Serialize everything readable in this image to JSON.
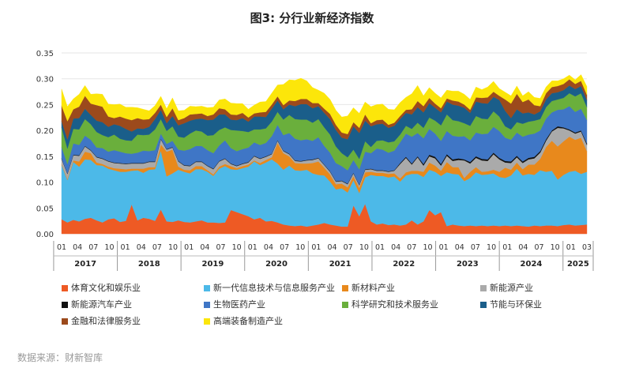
{
  "title": "图3: 分行业新经济指数",
  "source_note": "数据来源：财新智库",
  "chart_data": {
    "type": "area",
    "stacked": true,
    "title": "图3: 分行业新经济指数",
    "ylim": [
      0,
      0.35
    ],
    "y_ticks": [
      "0.00",
      "0.05",
      "0.10",
      "0.15",
      "0.20",
      "0.25",
      "0.30",
      "0.35"
    ],
    "month_ticks": [
      "01",
      "04",
      "07",
      "10",
      "01",
      "04",
      "07",
      "10",
      "01",
      "04",
      "07",
      "10",
      "01",
      "04",
      "07",
      "10",
      "01",
      "04",
      "07",
      "10",
      "01",
      "04",
      "07",
      "10",
      "01",
      "04",
      "07",
      "10",
      "01",
      "04",
      "07",
      "10",
      "01",
      "03"
    ],
    "year_labels": [
      "2017",
      "2018",
      "2019",
      "2020",
      "2021",
      "2022",
      "2023",
      "2024",
      "2025"
    ],
    "series": [
      {
        "name": "体育文化和娱乐业",
        "color": "#ee5a24",
        "values": [
          0.028,
          0.022,
          0.027,
          0.024,
          0.029,
          0.031,
          0.026,
          0.022,
          0.028,
          0.03,
          0.023,
          0.025,
          0.057,
          0.026,
          0.031,
          0.029,
          0.025,
          0.047,
          0.024,
          0.023,
          0.026,
          0.023,
          0.022,
          0.024,
          0.026,
          0.022,
          0.022,
          0.021,
          0.022,
          0.046,
          0.042,
          0.038,
          0.034,
          0.028,
          0.031,
          0.024,
          0.025,
          0.022,
          0.018,
          0.016,
          0.015,
          0.016,
          0.014,
          0.016,
          0.018,
          0.021,
          0.018,
          0.016,
          0.014,
          0.014,
          0.055,
          0.034,
          0.058,
          0.024,
          0.018,
          0.02,
          0.017,
          0.018,
          0.016,
          0.018,
          0.026,
          0.018,
          0.024,
          0.046,
          0.036,
          0.042,
          0.015,
          0.018,
          0.016,
          0.015,
          0.016,
          0.015,
          0.016,
          0.015,
          0.016,
          0.015,
          0.016,
          0.015,
          0.016,
          0.015,
          0.014,
          0.016,
          0.015,
          0.016,
          0.016,
          0.015,
          0.017,
          0.018,
          0.016,
          0.017,
          0.018
        ]
      },
      {
        "name": "新一代信息技术与信息服务产业",
        "color": "#4cb9e8",
        "values": [
          0.105,
          0.082,
          0.112,
          0.106,
          0.115,
          0.112,
          0.107,
          0.11,
          0.098,
          0.093,
          0.097,
          0.095,
          0.065,
          0.097,
          0.087,
          0.095,
          0.1,
          0.114,
          0.087,
          0.094,
          0.098,
          0.097,
          0.095,
          0.101,
          0.099,
          0.098,
          0.09,
          0.105,
          0.109,
          0.079,
          0.082,
          0.089,
          0.096,
          0.112,
          0.102,
          0.114,
          0.119,
          0.114,
          0.106,
          0.116,
          0.108,
          0.106,
          0.11,
          0.101,
          0.096,
          0.092,
          0.083,
          0.07,
          0.074,
          0.066,
          0.049,
          0.045,
          0.051,
          0.09,
          0.094,
          0.092,
          0.092,
          0.093,
          0.085,
          0.095,
          0.09,
          0.098,
          0.086,
          0.078,
          0.084,
          0.07,
          0.104,
          0.098,
          0.099,
          0.087,
          0.092,
          0.104,
          0.098,
          0.1,
          0.101,
          0.095,
          0.092,
          0.098,
          0.11,
          0.098,
          0.102,
          0.098,
          0.108,
          0.104,
          0.106,
          0.09,
          0.097,
          0.102,
          0.106,
          0.099,
          0.102
        ]
      },
      {
        "name": "新材料产业",
        "color": "#e8891c",
        "values": [
          0.002,
          0.002,
          0.003,
          0.01,
          0.015,
          0.013,
          0.005,
          0.003,
          0.004,
          0.004,
          0.006,
          0.005,
          0.004,
          0.003,
          0.008,
          0.005,
          0.004,
          0.012,
          0.048,
          0.046,
          0.006,
          0.004,
          0.006,
          0.006,
          0.006,
          0.003,
          0.003,
          0.004,
          0.004,
          0.006,
          0.003,
          0.004,
          0.004,
          0.002,
          0.004,
          0.005,
          0.004,
          0.04,
          0.032,
          0.018,
          0.014,
          0.014,
          0.012,
          0.02,
          0.026,
          0.015,
          0.014,
          0.01,
          0.009,
          0.01,
          0.008,
          0.01,
          0.01,
          0.006,
          0.006,
          0.006,
          0.007,
          0.006,
          0.006,
          0.006,
          0.006,
          0.006,
          0.01,
          0.014,
          0.012,
          0.01,
          0.02,
          0.013,
          0.014,
          0.006,
          0.012,
          0.01,
          0.006,
          0.006,
          0.007,
          0.01,
          0.02,
          0.011,
          0.012,
          0.012,
          0.018,
          0.02,
          0.022,
          0.048,
          0.058,
          0.064,
          0.065,
          0.068,
          0.06,
          0.07,
          0.04
        ]
      },
      {
        "name": "新能源产业",
        "color": "#aaaaaa",
        "values": [
          0.01,
          0.01,
          0.01,
          0.011,
          0.01,
          0.005,
          0.01,
          0.01,
          0.01,
          0.01,
          0.01,
          0.01,
          0.01,
          0.01,
          0.01,
          0.01,
          0.01,
          0.01,
          0.004,
          0.004,
          0.01,
          0.008,
          0.008,
          0.008,
          0.008,
          0.008,
          0.01,
          0.01,
          0.01,
          0.004,
          0.004,
          0.004,
          0.004,
          0.008,
          0.008,
          0.006,
          0.006,
          0.004,
          0.004,
          0.004,
          0.004,
          0.004,
          0.006,
          0.006,
          0.006,
          0.005,
          0.005,
          0.005,
          0.005,
          0.006,
          0.005,
          0.005,
          0.005,
          0.005,
          0.004,
          0.004,
          0.004,
          0.005,
          0.028,
          0.028,
          0.012,
          0.026,
          0.012,
          0.012,
          0.014,
          0.01,
          0.012,
          0.012,
          0.014,
          0.034,
          0.016,
          0.018,
          0.022,
          0.02,
          0.03,
          0.024,
          0.01,
          0.013,
          0.01,
          0.012,
          0.01,
          0.012,
          0.012,
          0.012,
          0.018,
          0.036,
          0.025,
          0.012,
          0.012,
          0.012,
          0.012
        ]
      },
      {
        "name": "新能源汽车产业",
        "color": "#111111",
        "values": [
          0.001,
          0.001,
          0.001,
          0.001,
          0.001,
          0.001,
          0.001,
          0.001,
          0.001,
          0.001,
          0.001,
          0.001,
          0.001,
          0.001,
          0.001,
          0.001,
          0.001,
          0.001,
          0.001,
          0.001,
          0.001,
          0.001,
          0.001,
          0.001,
          0.001,
          0.001,
          0.001,
          0.001,
          0.001,
          0.001,
          0.001,
          0.001,
          0.001,
          0.001,
          0.001,
          0.001,
          0.001,
          0.001,
          0.001,
          0.001,
          0.001,
          0.001,
          0.001,
          0.001,
          0.001,
          0.001,
          0.001,
          0.001,
          0.001,
          0.001,
          0.001,
          0.001,
          0.001,
          0.001,
          0.001,
          0.001,
          0.001,
          0.001,
          0.002,
          0.002,
          0.002,
          0.002,
          0.003,
          0.003,
          0.003,
          0.003,
          0.003,
          0.003,
          0.003,
          0.002,
          0.003,
          0.003,
          0.003,
          0.003,
          0.003,
          0.003,
          0.003,
          0.003,
          0.003,
          0.003,
          0.003,
          0.003,
          0.003,
          0.003,
          0.002,
          0.003,
          0.002,
          0.002,
          0.002,
          0.002,
          0.003
        ]
      },
      {
        "name": "生物医药产业",
        "color": "#3f76c6",
        "values": [
          0.022,
          0.018,
          0.022,
          0.02,
          0.02,
          0.02,
          0.018,
          0.02,
          0.018,
          0.024,
          0.022,
          0.02,
          0.018,
          0.02,
          0.024,
          0.02,
          0.022,
          0.01,
          0.01,
          0.012,
          0.022,
          0.028,
          0.032,
          0.03,
          0.03,
          0.03,
          0.03,
          0.03,
          0.035,
          0.03,
          0.028,
          0.028,
          0.028,
          0.026,
          0.026,
          0.026,
          0.034,
          0.03,
          0.03,
          0.04,
          0.042,
          0.04,
          0.04,
          0.036,
          0.04,
          0.036,
          0.036,
          0.035,
          0.028,
          0.026,
          0.025,
          0.03,
          0.034,
          0.03,
          0.042,
          0.04,
          0.036,
          0.038,
          0.04,
          0.045,
          0.052,
          0.045,
          0.05,
          0.05,
          0.045,
          0.045,
          0.045,
          0.046,
          0.042,
          0.045,
          0.042,
          0.046,
          0.048,
          0.05,
          0.05,
          0.052,
          0.045,
          0.042,
          0.045,
          0.048,
          0.045,
          0.045,
          0.04,
          0.04,
          0.035,
          0.032,
          0.035,
          0.045,
          0.04,
          0.042,
          0.045
        ]
      },
      {
        "name": "科学研究和技术服务业",
        "color": "#6aaf3c",
        "values": [
          0.038,
          0.03,
          0.028,
          0.03,
          0.032,
          0.03,
          0.03,
          0.025,
          0.028,
          0.03,
          0.025,
          0.025,
          0.025,
          0.035,
          0.03,
          0.032,
          0.04,
          0.028,
          0.025,
          0.028,
          0.025,
          0.025,
          0.03,
          0.03,
          0.028,
          0.028,
          0.035,
          0.03,
          0.025,
          0.035,
          0.04,
          0.035,
          0.03,
          0.025,
          0.03,
          0.028,
          0.028,
          0.025,
          0.03,
          0.035,
          0.038,
          0.04,
          0.038,
          0.035,
          0.035,
          0.036,
          0.035,
          0.032,
          0.025,
          0.025,
          0.02,
          0.02,
          0.02,
          0.012,
          0.015,
          0.018,
          0.02,
          0.018,
          0.015,
          0.015,
          0.015,
          0.02,
          0.02,
          0.022,
          0.025,
          0.03,
          0.032,
          0.03,
          0.03,
          0.025,
          0.028,
          0.032,
          0.03,
          0.028,
          0.03,
          0.028,
          0.022,
          0.02,
          0.02,
          0.025,
          0.025,
          0.025,
          0.022,
          0.022,
          0.022,
          0.02,
          0.022,
          0.025,
          0.03,
          0.03,
          0.025
        ]
      },
      {
        "name": "节能与环保业",
        "color": "#1a5e8a",
        "values": [
          0.012,
          0.018,
          0.02,
          0.022,
          0.02,
          0.018,
          0.022,
          0.025,
          0.02,
          0.02,
          0.025,
          0.022,
          0.018,
          0.012,
          0.012,
          0.015,
          0.02,
          0.018,
          0.015,
          0.02,
          0.022,
          0.028,
          0.025,
          0.022,
          0.025,
          0.03,
          0.03,
          0.03,
          0.025,
          0.02,
          0.02,
          0.025,
          0.02,
          0.025,
          0.025,
          0.022,
          0.025,
          0.022,
          0.02,
          0.02,
          0.025,
          0.03,
          0.03,
          0.028,
          0.025,
          0.028,
          0.03,
          0.032,
          0.03,
          0.035,
          0.045,
          0.05,
          0.04,
          0.04,
          0.032,
          0.032,
          0.028,
          0.03,
          0.03,
          0.025,
          0.028,
          0.03,
          0.03,
          0.028,
          0.025,
          0.025,
          0.025,
          0.03,
          0.03,
          0.03,
          0.025,
          0.028,
          0.03,
          0.03,
          0.028,
          0.032,
          0.03,
          0.022,
          0.025,
          0.02,
          0.018,
          0.012,
          0.015,
          0.015,
          0.015,
          0.014,
          0.015,
          0.015,
          0.014,
          0.014,
          0.014
        ]
      },
      {
        "name": "金融和法律服务业",
        "color": "#9c4a1c",
        "values": [
          0.03,
          0.035,
          0.018,
          0.022,
          0.025,
          0.022,
          0.03,
          0.03,
          0.02,
          0.012,
          0.018,
          0.02,
          0.022,
          0.02,
          0.018,
          0.015,
          0.012,
          0.01,
          0.012,
          0.015,
          0.01,
          0.01,
          0.012,
          0.01,
          0.01,
          0.008,
          0.01,
          0.012,
          0.01,
          0.01,
          0.01,
          0.01,
          0.008,
          0.006,
          0.008,
          0.01,
          0.008,
          0.008,
          0.008,
          0.008,
          0.01,
          0.01,
          0.01,
          0.01,
          0.006,
          0.008,
          0.01,
          0.01,
          0.01,
          0.01,
          0.008,
          0.01,
          0.012,
          0.006,
          0.008,
          0.008,
          0.006,
          0.006,
          0.006,
          0.006,
          0.01,
          0.012,
          0.012,
          0.01,
          0.008,
          0.008,
          0.006,
          0.008,
          0.008,
          0.006,
          0.006,
          0.008,
          0.01,
          0.012,
          0.01,
          0.008,
          0.022,
          0.028,
          0.03,
          0.022,
          0.025,
          0.018,
          0.01,
          0.012,
          0.012,
          0.012,
          0.012,
          0.012,
          0.01,
          0.01,
          0.01
        ]
      },
      {
        "name": "高端装备制造产业",
        "color": "#fce60a",
        "values": [
          0.032,
          0.028,
          0.02,
          0.024,
          0.02,
          0.018,
          0.022,
          0.024,
          0.024,
          0.026,
          0.024,
          0.022,
          0.025,
          0.02,
          0.02,
          0.016,
          0.014,
          0.016,
          0.016,
          0.02,
          0.018,
          0.015,
          0.016,
          0.014,
          0.014,
          0.016,
          0.014,
          0.016,
          0.02,
          0.022,
          0.022,
          0.018,
          0.016,
          0.016,
          0.02,
          0.02,
          0.022,
          0.022,
          0.04,
          0.04,
          0.04,
          0.04,
          0.035,
          0.03,
          0.025,
          0.03,
          0.028,
          0.028,
          0.03,
          0.035,
          0.028,
          0.028,
          0.024,
          0.032,
          0.03,
          0.03,
          0.03,
          0.025,
          0.026,
          0.024,
          0.03,
          0.03,
          0.02,
          0.02,
          0.02,
          0.02,
          0.016,
          0.018,
          0.02,
          0.02,
          0.02,
          0.02,
          0.016,
          0.02,
          0.02,
          0.014,
          0.014,
          0.015,
          0.015,
          0.012,
          0.015,
          0.015,
          0.015,
          0.012,
          0.012,
          0.01,
          0.01,
          0.008,
          0.008,
          0.012,
          0.016
        ]
      }
    ]
  }
}
